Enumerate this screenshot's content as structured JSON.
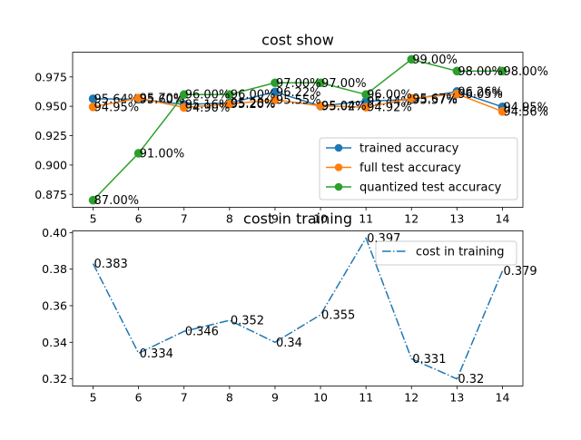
{
  "chart_data": [
    {
      "type": "line",
      "title": "cost show",
      "xlabel": "",
      "ylabel": "",
      "x": [
        5,
        6,
        7,
        8,
        9,
        10,
        11,
        12,
        13,
        14
      ],
      "xlim": [
        4.55,
        14.45
      ],
      "ylim": [
        0.864,
        0.996
      ],
      "yticks": [
        0.875,
        0.9,
        0.925,
        0.95,
        0.975
      ],
      "ytick_labels": [
        "0.875",
        "0.900",
        "0.925",
        "0.950",
        "0.975"
      ],
      "grid": false,
      "legend_position": "lower-right",
      "series": [
        {
          "name": "trained accuracy",
          "color": "#1f77b4",
          "marker": "circle",
          "values": [
            0.9564,
            0.956,
            0.9516,
            0.9528,
            0.9622,
            0.9502,
            0.9544,
            0.9557,
            0.9626,
            0.9495
          ],
          "labels": [
            "95.64%",
            "95.60%",
            "95.16%",
            "95.28%",
            "96.22%",
            "95.02%",
            "95.44%",
            "95.57%",
            "96.26%",
            "94.95%"
          ]
        },
        {
          "name": "full test accuracy",
          "color": "#ff7f0e",
          "marker": "circle",
          "values": [
            0.9495,
            0.957,
            0.949,
            0.952,
            0.9555,
            0.9504,
            0.9492,
            0.9567,
            0.9605,
            0.9456
          ],
          "labels": [
            "94.95%",
            "95.70%",
            "94.90%",
            "95.20%",
            "95.55%",
            "95.04%",
            "94.92%",
            "95.67%",
            "96.05%",
            "94.56%"
          ]
        },
        {
          "name": "quantized test accuracy",
          "color": "#2ca02c",
          "marker": "circle",
          "values": [
            0.87,
            0.91,
            0.96,
            0.96,
            0.97,
            0.97,
            0.96,
            0.99,
            0.98,
            0.98
          ],
          "labels": [
            "87.00%",
            "91.00%",
            "96.00%",
            "96.00%",
            "97.00%",
            "97.00%",
            "96.00%",
            "99.00%",
            "98.00%",
            "98.00%"
          ]
        }
      ]
    },
    {
      "type": "line",
      "title": "cost in training",
      "xlabel": "",
      "ylabel": "",
      "x": [
        5,
        6,
        7,
        8,
        9,
        10,
        11,
        12,
        13,
        14
      ],
      "xlim": [
        4.55,
        14.45
      ],
      "ylim": [
        0.3161,
        0.4009
      ],
      "yticks": [
        0.32,
        0.34,
        0.36,
        0.38,
        0.4
      ],
      "ytick_labels": [
        "0.32",
        "0.34",
        "0.36",
        "0.38",
        "0.40"
      ],
      "grid": false,
      "legend_position": "upper-right",
      "series": [
        {
          "name": "cost in training",
          "color": "#1f77b4",
          "line_style": "dash-dot",
          "values": [
            0.383,
            0.334,
            0.346,
            0.352,
            0.34,
            0.355,
            0.397,
            0.331,
            0.32,
            0.379
          ],
          "labels": [
            "0.383",
            "0.334",
            "0.346",
            "0.352",
            "0.34",
            "0.355",
            "0.397",
            "0.331",
            "0.32",
            "0.379"
          ]
        }
      ]
    }
  ]
}
